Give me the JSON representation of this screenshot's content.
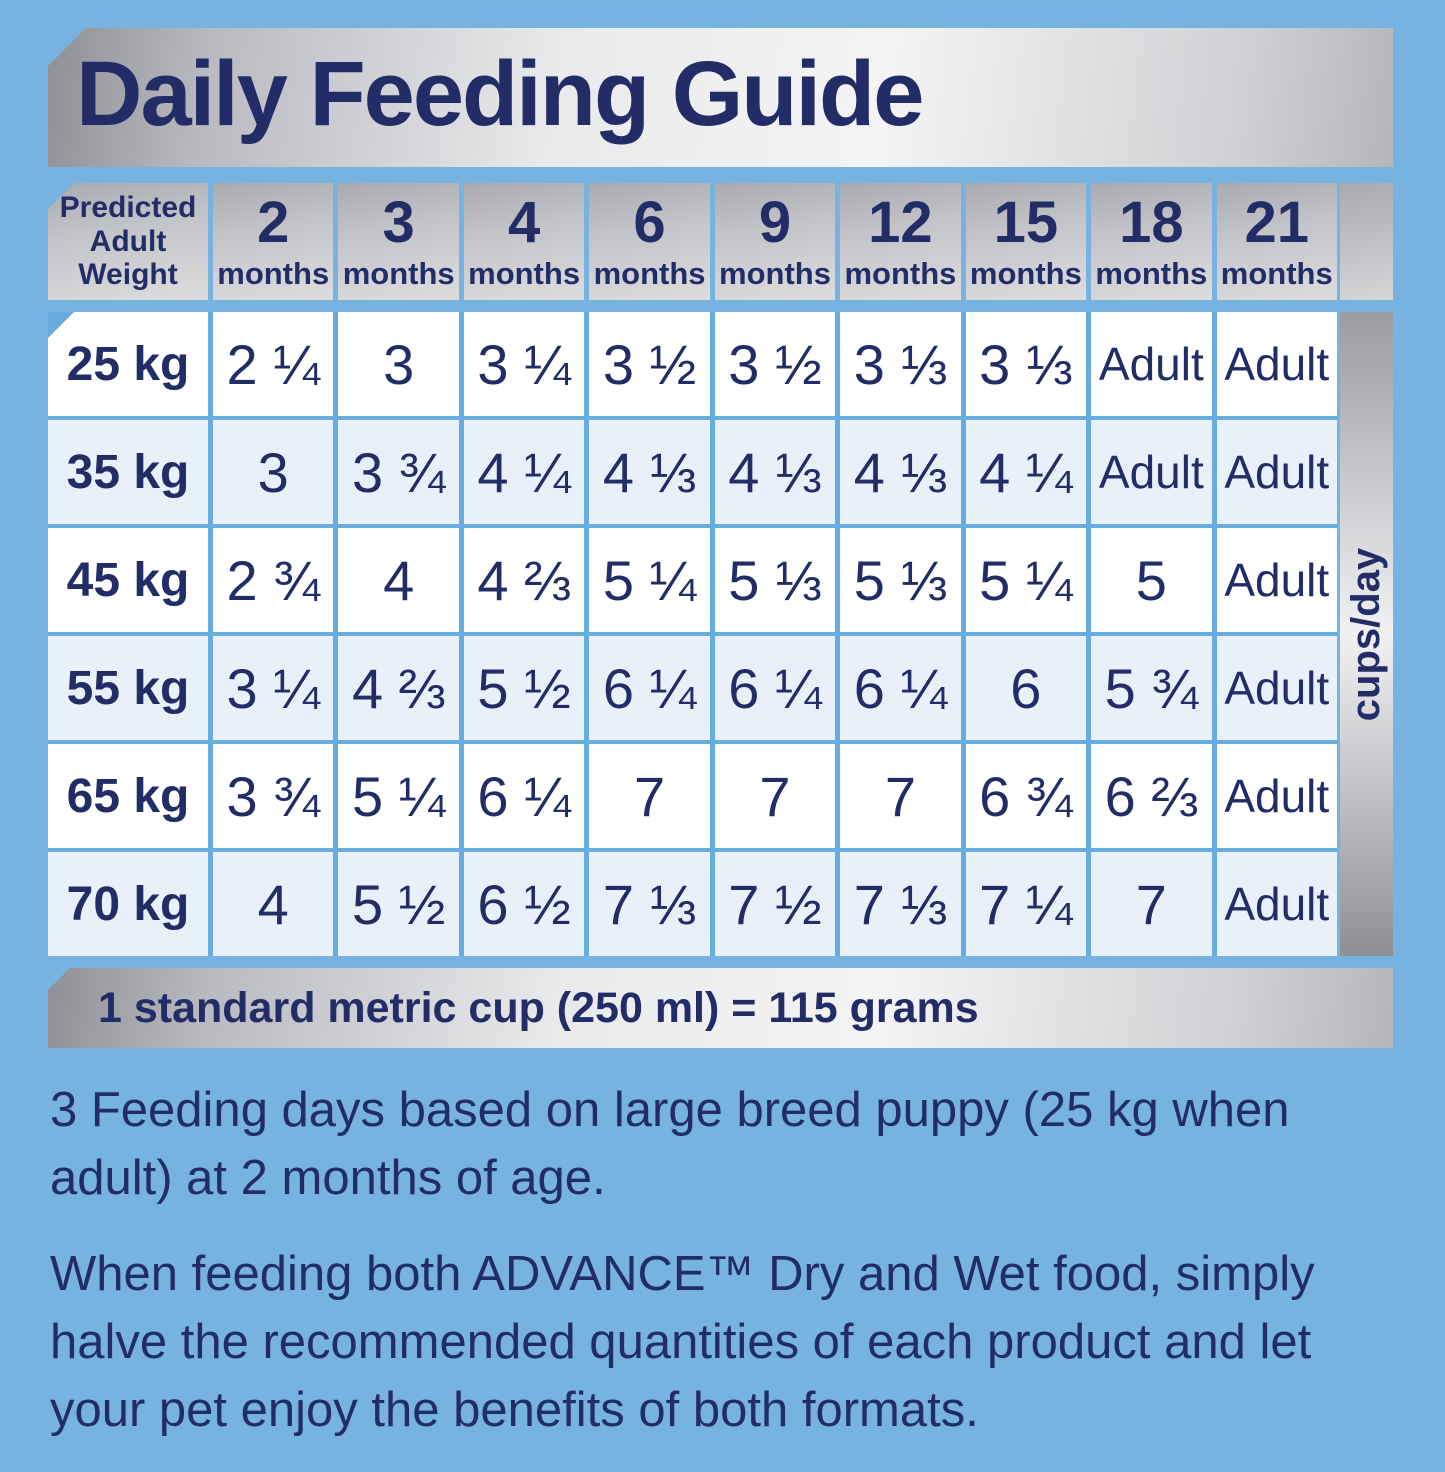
{
  "colors": {
    "background_blue": "#77b3e1",
    "navy_text": "#222d68",
    "grid_line_blue": "#67acde",
    "row_white": "#ffffff",
    "row_alt_blue": "#e8f1fa",
    "silver_light": "#f4f4f5",
    "silver_dark": "#8f9095"
  },
  "chart_data": {
    "type": "table",
    "title": "Daily Feeding Guide",
    "corner_header": "Predicted Adult Weight",
    "row_unit_label": "cups/day",
    "column_headers": [
      {
        "number": "2",
        "unit": "months"
      },
      {
        "number": "3",
        "unit": "months"
      },
      {
        "number": "4",
        "unit": "months"
      },
      {
        "number": "6",
        "unit": "months"
      },
      {
        "number": "9",
        "unit": "months"
      },
      {
        "number": "12",
        "unit": "months"
      },
      {
        "number": "15",
        "unit": "months"
      },
      {
        "number": "18",
        "unit": "months"
      },
      {
        "number": "21",
        "unit": "months"
      }
    ],
    "rows": [
      {
        "weight": "25 kg",
        "values": [
          "2 ¼",
          "3",
          "3 ¼",
          "3 ½",
          "3 ½",
          "3 ⅓",
          "3 ⅓",
          "Adult",
          "Adult"
        ]
      },
      {
        "weight": "35 kg",
        "values": [
          "3",
          "3 ¾",
          "4 ¼",
          "4 ⅓",
          "4 ⅓",
          "4 ⅓",
          "4 ¼",
          "Adult",
          "Adult"
        ]
      },
      {
        "weight": "45 kg",
        "values": [
          "2 ¾",
          "4",
          "4 ⅔",
          "5 ¼",
          "5 ⅓",
          "5 ⅓",
          "5 ¼",
          "5",
          "Adult"
        ]
      },
      {
        "weight": "55 kg",
        "values": [
          "3 ¼",
          "4 ⅔",
          "5 ½",
          "6 ¼",
          "6 ¼",
          "6 ¼",
          "6",
          "5 ¾",
          "Adult"
        ]
      },
      {
        "weight": "65 kg",
        "values": [
          "3 ¾",
          "5 ¼",
          "6 ¼",
          "7",
          "7",
          "7",
          "6 ¾",
          "6 ⅔",
          "Adult"
        ]
      },
      {
        "weight": "70 kg",
        "values": [
          "4",
          "5 ½",
          "6 ½",
          "7 ⅓",
          "7 ½",
          "7 ⅓",
          "7 ¼",
          "7",
          "Adult"
        ]
      }
    ],
    "cup_note": "1 standard metric cup (250 ml) = 115 grams",
    "footnotes": [
      "3 Feeding days based on large breed puppy (25 kg when adult) at 2 months of age.",
      "When feeding both ADVANCE™ Dry and Wet food, simply halve the recommended quantities of each product and let your pet enjoy the benefits of both formats."
    ]
  }
}
